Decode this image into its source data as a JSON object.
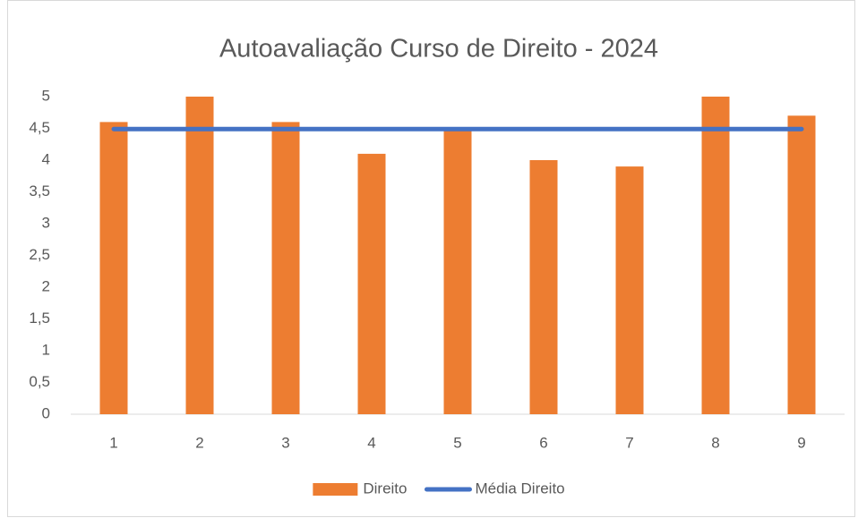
{
  "chart_data": {
    "type": "bar",
    "title": "Autoavaliação Curso de Direito - 2024",
    "categories": [
      "1",
      "2",
      "3",
      "4",
      "5",
      "6",
      "7",
      "8",
      "9"
    ],
    "series": [
      {
        "name": "Direito",
        "type": "bar",
        "color": "#ed7d31",
        "values": [
          4.6,
          5,
          4.6,
          4.1,
          4.5,
          4.0,
          3.9,
          5,
          4.7
        ]
      },
      {
        "name": "Média Direito",
        "type": "line",
        "color": "#4472c4",
        "values": [
          4.49,
          4.49,
          4.49,
          4.49,
          4.49,
          4.49,
          4.49,
          4.49,
          4.49
        ]
      }
    ],
    "ylim": [
      0,
      5
    ],
    "yticks": [
      0,
      {
        "value": 0.5,
        "label": "0,5"
      },
      1,
      {
        "value": 1.5,
        "label": "1,5"
      },
      2,
      {
        "value": 2.5,
        "label": "2,5"
      },
      3,
      {
        "value": 3.5,
        "label": "3,5"
      },
      4,
      {
        "value": 4.5,
        "label": "4,5"
      },
      5
    ],
    "grid": false,
    "legend": "bottom"
  }
}
